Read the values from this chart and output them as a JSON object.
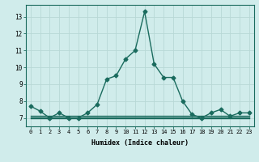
{
  "xlabel": "Humidex (Indice chaleur)",
  "x": [
    0,
    1,
    2,
    3,
    4,
    5,
    6,
    7,
    8,
    9,
    10,
    11,
    12,
    13,
    14,
    15,
    16,
    17,
    18,
    19,
    20,
    21,
    22,
    23
  ],
  "y_main": [
    7.7,
    7.4,
    7.0,
    7.3,
    7.0,
    7.0,
    7.3,
    7.8,
    9.3,
    9.5,
    10.5,
    11.0,
    13.3,
    10.2,
    9.4,
    9.4,
    8.0,
    7.2,
    7.0,
    7.3,
    7.5,
    7.1,
    7.3,
    7.3
  ],
  "y_flat1": [
    7.0,
    7.0,
    7.0,
    7.0,
    7.0,
    7.0,
    7.0,
    7.0,
    7.0,
    7.0,
    7.0,
    7.0,
    7.0,
    7.0,
    7.0,
    7.0,
    7.0,
    7.0,
    7.0,
    7.0,
    7.0,
    7.0,
    7.0,
    7.0
  ],
  "y_flat2": [
    7.05,
    7.05,
    7.05,
    7.05,
    7.05,
    7.05,
    7.05,
    7.05,
    7.05,
    7.05,
    7.05,
    7.05,
    7.05,
    7.05,
    7.05,
    7.05,
    7.05,
    7.05,
    7.05,
    7.05,
    7.05,
    7.05,
    7.05,
    7.05
  ],
  "y_flat3": [
    7.12,
    7.12,
    7.12,
    7.12,
    7.12,
    7.12,
    7.12,
    7.12,
    7.12,
    7.12,
    7.12,
    7.12,
    7.12,
    7.12,
    7.12,
    7.12,
    7.12,
    7.12,
    7.12,
    7.12,
    7.12,
    7.12,
    7.12,
    7.12
  ],
  "line_color": "#1a6b5e",
  "bg_color": "#d0eceb",
  "grid_color": "#b8d8d6",
  "ylim": [
    6.5,
    13.7
  ],
  "yticks": [
    7,
    8,
    9,
    10,
    11,
    12,
    13
  ],
  "marker": "D",
  "markersize": 2.5,
  "linewidth": 1.0
}
